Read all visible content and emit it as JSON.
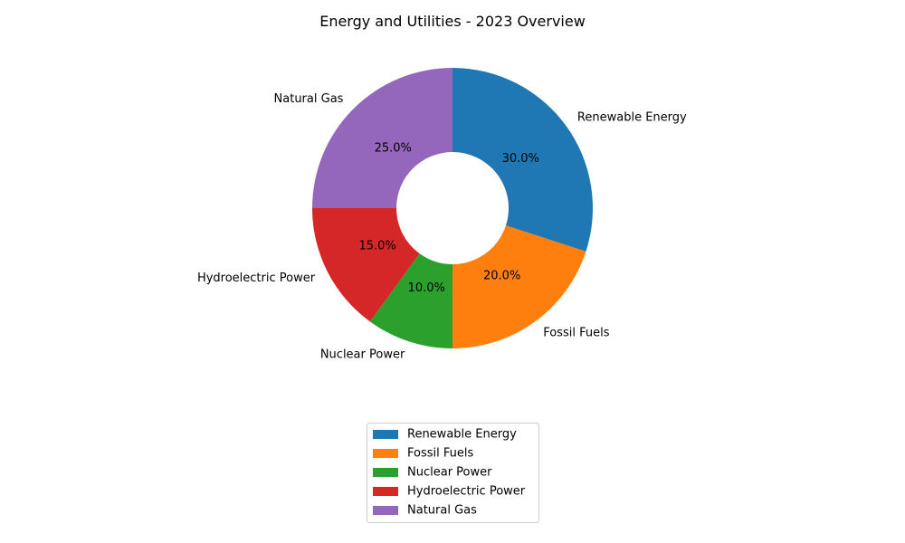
{
  "chart_data": {
    "type": "pie",
    "style": "donut",
    "title": "Energy and Utilities - 2023 Overview",
    "categories": [
      "Renewable Energy",
      "Fossil Fuels",
      "Nuclear Power",
      "Hydroelectric Power",
      "Natural Gas"
    ],
    "values": [
      30,
      20,
      10,
      15,
      25
    ],
    "percent_labels": [
      "30.0%",
      "20.0%",
      "10.0%",
      "15.0%",
      "25.0%"
    ],
    "colors": [
      "#1f77b4",
      "#ff7f0e",
      "#2ca02c",
      "#d62728",
      "#9467bd"
    ],
    "start_angle_deg": 90,
    "direction": "clockwise",
    "legend": {
      "placement": "bottom-center",
      "entries": [
        "Renewable Energy",
        "Fossil Fuels",
        "Nuclear Power",
        "Hydroelectric Power",
        "Natural Gas"
      ]
    }
  }
}
